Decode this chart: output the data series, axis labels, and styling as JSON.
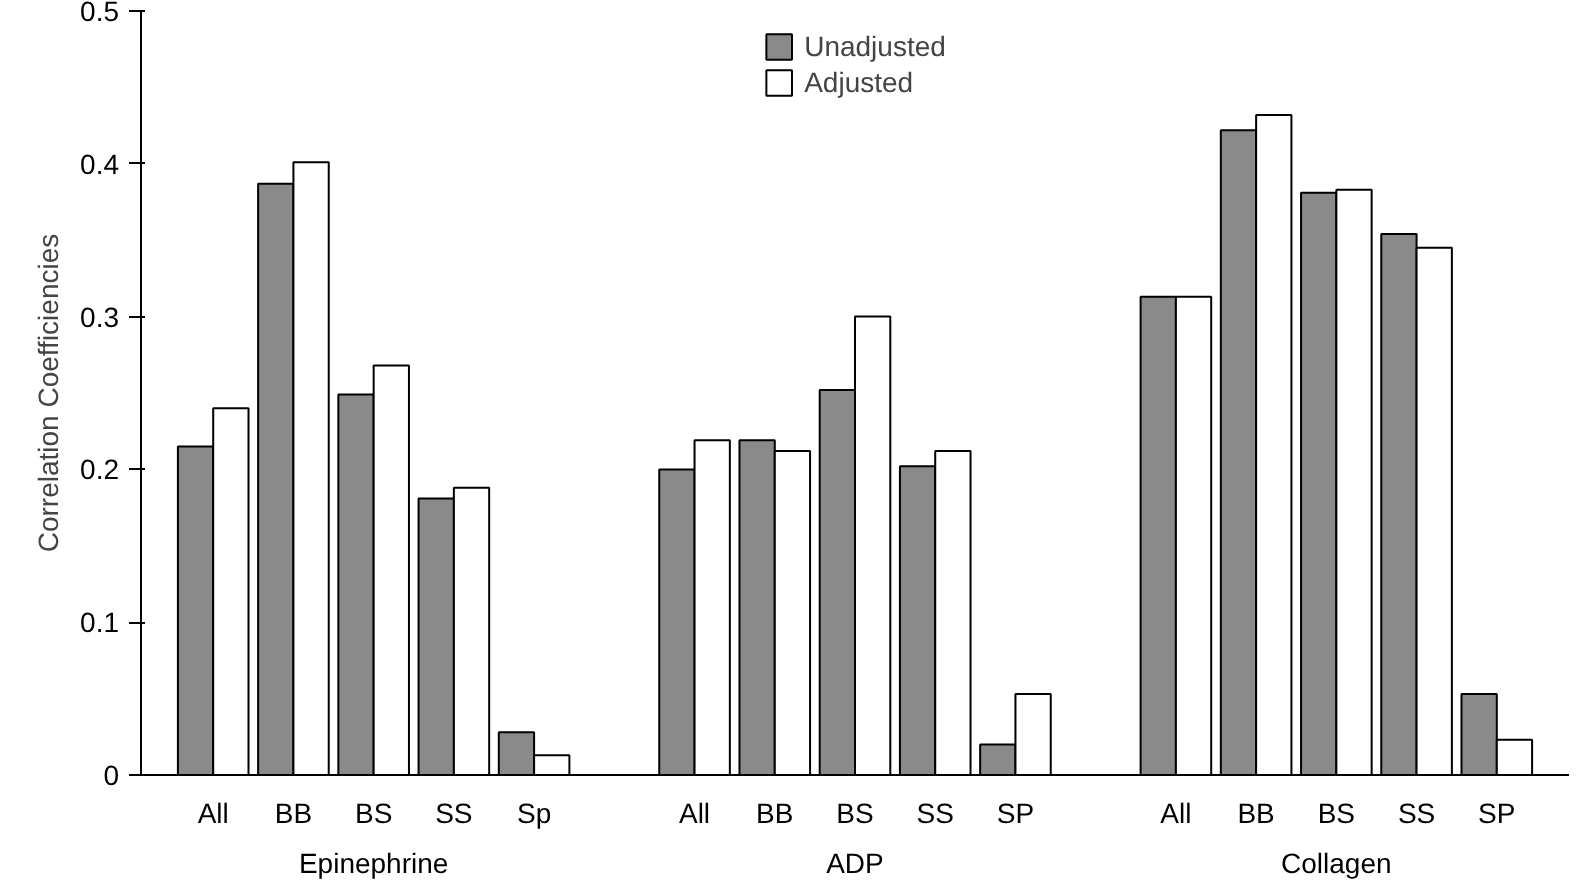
{
  "chart_data": {
    "type": "bar",
    "ylabel": "Correlation Coefficiencies",
    "categories": [
      "All",
      "BB",
      "BS",
      "SS",
      "Sp",
      "All",
      "BB",
      "BS",
      "SS",
      "SP",
      "All",
      "BB",
      "BS",
      "SS",
      "SP"
    ],
    "series": [
      {
        "name": "Unadjusted",
        "color": "#8a8a8a",
        "values": [
          0.215,
          0.387,
          0.249,
          0.181,
          0.028,
          0.2,
          0.219,
          0.252,
          0.202,
          0.02,
          0.313,
          0.422,
          0.381,
          0.354,
          0.053
        ]
      },
      {
        "name": "Adjusted",
        "color": "#ffffff",
        "values": [
          0.24,
          0.401,
          0.268,
          0.188,
          0.013,
          0.219,
          0.212,
          0.3,
          0.212,
          0.053,
          0.313,
          0.432,
          0.383,
          0.345,
          0.023
        ]
      }
    ],
    "annotations": [
      "Epinephrine",
      "ADP",
      "Collagen"
    ],
    "ylim": [
      0,
      0.5
    ],
    "yticks": [
      0,
      0.1,
      0.2,
      0.3,
      0.4,
      0.5
    ],
    "grid": false,
    "legend": "top"
  }
}
